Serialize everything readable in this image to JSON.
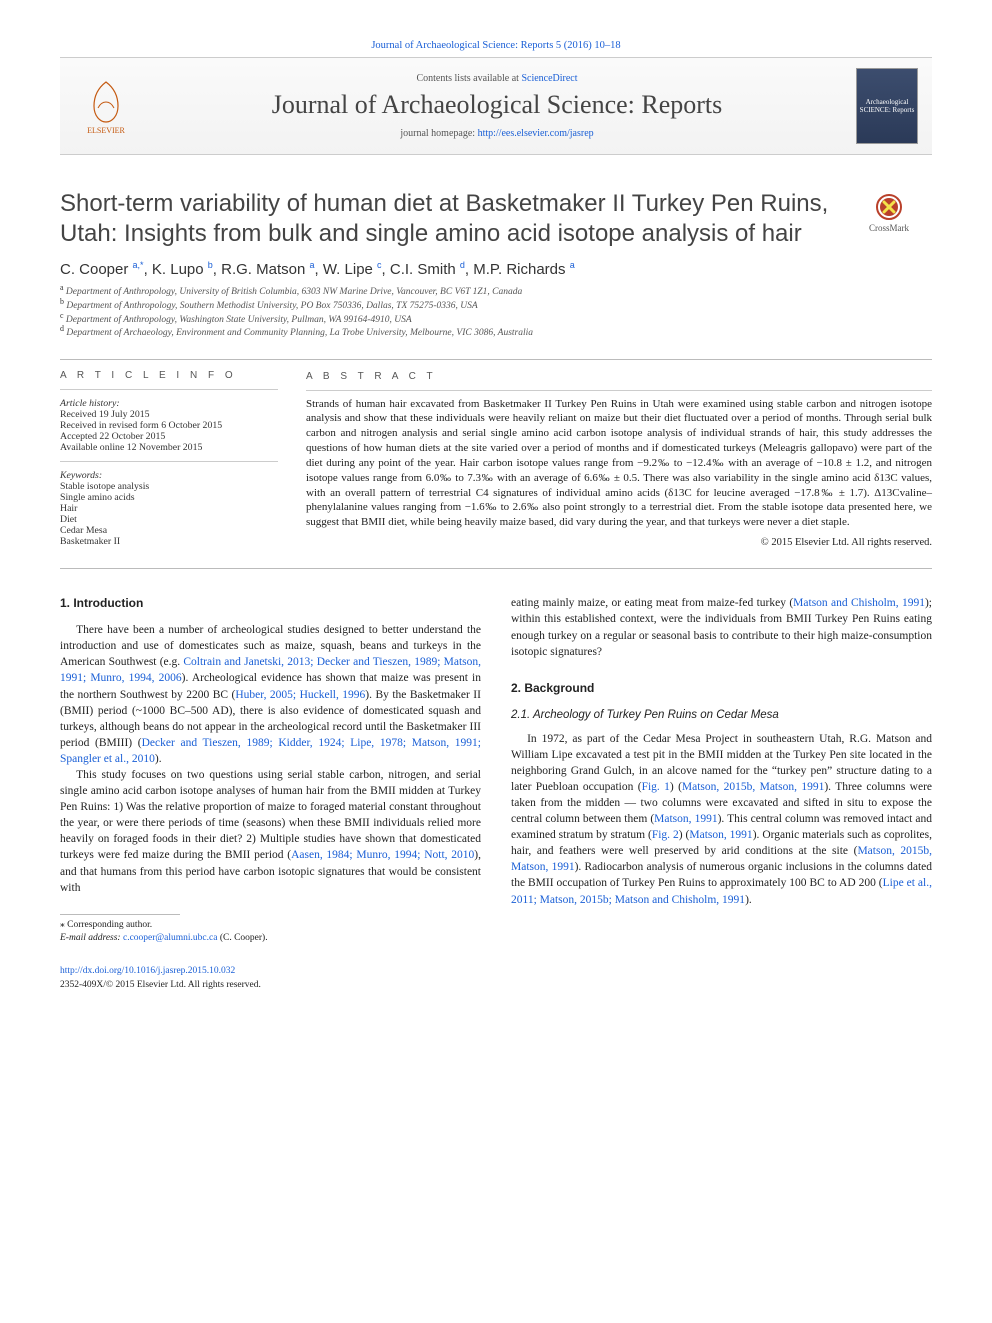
{
  "topbar": {
    "citation": "Journal of Archaeological Science: Reports 5 (2016) 10–18"
  },
  "masthead": {
    "elsevier": "ELSEVIER",
    "contents_prefix": "Contents lists available at ",
    "contents_link": "ScienceDirect",
    "journal_title": "Journal of Archaeological Science: Reports",
    "homepage_label": "journal homepage: ",
    "homepage_url": "http://ees.elsevier.com/jasrep",
    "cover_label": "Archaeological SCIENCE: Reports"
  },
  "crossmark": "CrossMark",
  "title": "Short-term variability of human diet at Basketmaker II Turkey Pen Ruins, Utah: Insights from bulk and single amino acid isotope analysis of hair",
  "authors_html": "C. Cooper <sup>a,*</sup>, K. Lupo <sup>b</sup>, R.G. Matson <sup>a</sup>, W. Lipe <sup>c</sup>, C.I. Smith <sup>d</sup>, M.P. Richards <sup>a</sup>",
  "affiliations": [
    "a  Department of Anthropology, University of British Columbia, 6303 NW Marine Drive, Vancouver, BC V6T 1Z1, Canada",
    "b  Department of Anthropology, Southern Methodist University, PO Box 750336, Dallas, TX 75275-0336, USA",
    "c  Department of Anthropology, Washington State University, Pullman, WA 99164-4910, USA",
    "d  Department of Archaeology, Environment and Community Planning, La Trobe University, Melbourne, VIC 3086, Australia"
  ],
  "info": {
    "heading": "A R T I C L E   I N F O",
    "history_label": "Article history:",
    "history": [
      "Received 19 July 2015",
      "Received in revised form 6 October 2015",
      "Accepted 22 October 2015",
      "Available online 12 November 2015"
    ],
    "keywords_label": "Keywords:",
    "keywords": [
      "Stable isotope analysis",
      "Single amino acids",
      "Hair",
      "Diet",
      "Cedar Mesa",
      "Basketmaker II"
    ]
  },
  "abstract": {
    "heading": "A B S T R A C T",
    "text": "Strands of human hair excavated from Basketmaker II Turkey Pen Ruins in Utah were examined using stable carbon and nitrogen isotope analysis and show that these individuals were heavily reliant on maize but their diet fluctuated over a period of months. Through serial bulk carbon and nitrogen analysis and serial single amino acid carbon isotope analysis of individual strands of hair, this study addresses the questions of how human diets at the site varied over a period of months and if domesticated turkeys (Meleagris gallopavo) were part of the diet during any point of the year. Hair carbon isotope values range from −9.2‰ to −12.4‰ with an average of −10.8 ± 1.2, and nitrogen isotope values range from 6.0‰ to 7.3‰ with an average of 6.6‰ ± 0.5. There was also variability in the single amino acid δ13C values, with an overall pattern of terrestrial C4 signatures of individual amino acids (δ13C for leucine averaged −17.8‰ ± 1.7). Δ13Cvaline–phenylalanine values ranging from −1.6‰ to 2.6‰ also point strongly to a terrestrial diet. From the stable isotope data presented here, we suggest that BMII diet, while being heavily maize based, did vary during the year, and that turkeys were never a diet staple.",
    "copyright": "© 2015 Elsevier Ltd. All rights reserved."
  },
  "sections": {
    "s1_heading": "1. Introduction",
    "s1_p1_html": "There have been a number of archeological studies designed to better understand the introduction and use of domesticates such as maize, squash, beans and turkeys in the American Southwest (e.g. <span class='cite'>Coltrain and Janetski, 2013; Decker and Tieszen, 1989; Matson, 1991; Munro, 1994, 2006</span>). Archeological evidence has shown that maize was present in the northern Southwest by 2200 BC (<span class='cite'>Huber, 2005; Huckell, 1996</span>). By the Basketmaker II (BMII) period (~1000 BC–500 AD), there is also evidence of domesticated squash and turkeys, although beans do not appear in the archeological record until the Basketmaker III period (BMIII) (<span class='cite'>Decker and Tieszen, 1989; Kidder, 1924; Lipe, 1978; Matson, 1991; Spangler et al., 2010</span>).",
    "s1_p2_html": "This study focuses on two questions using serial stable carbon, nitrogen, and serial single amino acid carbon isotope analyses of human hair from the BMII midden at Turkey Pen Ruins: 1) Was the relative proportion of maize to foraged material constant throughout the year, or were there periods of time (seasons) when these BMII individuals relied more heavily on foraged foods in their diet? 2) Multiple studies have shown that domesticated turkeys were fed maize during the BMII period (<span class='cite'>Aasen, 1984; Munro, 1994; Nott, 2010</span>), and that humans from this period have carbon isotopic signatures that would be consistent with",
    "rcol_lead_html": "eating mainly maize, or eating meat from maize-fed turkey (<span class='cite'>Matson and Chisholm, 1991</span>); within this established context, were the individuals from BMII Turkey Pen Ruins eating enough turkey on a regular or seasonal basis to contribute to their high maize-consumption isotopic signatures?",
    "s2_heading": "2. Background",
    "s21_heading": "2.1. Archeology of Turkey Pen Ruins on Cedar Mesa",
    "s21_p1_html": "In 1972, as part of the Cedar Mesa Project in southeastern Utah, R.G. Matson and William Lipe excavated a test pit in the BMII midden at the Turkey Pen site located in the neighboring Grand Gulch, in an alcove named for the “turkey pen” structure dating to a later Puebloan occupation (<span class='cite'>Fig. 1</span>) (<span class='cite'>Matson, 2015b, Matson, 1991</span>). Three columns were taken from the midden — two columns were excavated and sifted in situ to expose the central column between them (<span class='cite'>Matson, 1991</span>). This central column was removed intact and examined stratum by stratum (<span class='cite'>Fig. 2</span>) (<span class='cite'>Matson, 1991</span>). Organic materials such as coprolites, hair, and feathers were well preserved by arid conditions at the site (<span class='cite'>Matson, 2015b, Matson, 1991</span>). Radiocarbon analysis of numerous organic inclusions in the columns dated the BMII occupation of Turkey Pen Ruins to approximately 100 BC to AD 200 (<span class='cite'>Lipe et al., 2011; Matson, 2015b; Matson and Chisholm, 1991</span>)."
  },
  "footnote": {
    "star": "⁎ Corresponding author.",
    "email_label": "E-mail address:",
    "email": "c.cooper@alumni.ubc.ca",
    "email_name": "(C. Cooper)."
  },
  "doi": {
    "url": "http://dx.doi.org/10.1016/j.jasrep.2015.10.032",
    "issn_line": "2352-409X/© 2015 Elsevier Ltd. All rights reserved."
  },
  "colors": {
    "link": "#1a5fd6",
    "text": "#222222",
    "muted": "#555555",
    "rule": "#bbbbbb"
  }
}
